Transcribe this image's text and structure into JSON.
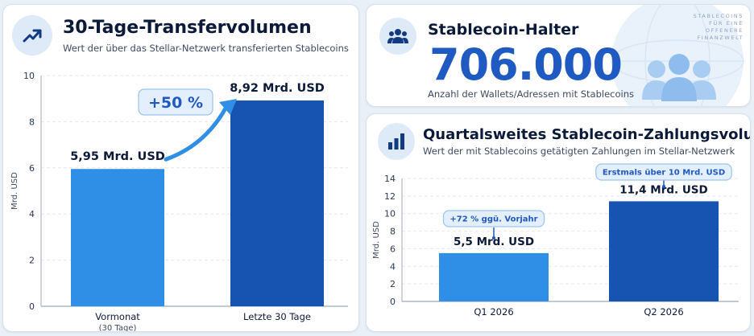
{
  "left_card": {
    "title": "30-Tage-Transfervolumen",
    "subtitle": "Wert der über das Stellar-Netzwerk transferierten Stablecoins",
    "icon": "trending-up-icon"
  },
  "holders_card": {
    "title": "Stablecoin-Halter",
    "value": "706.000",
    "caption": "Anzahl der Wallets/Adressen mit Stablecoins",
    "tagline": [
      "STABLECOINS",
      "FÜR EINE",
      "OFFENERE",
      "FINANZWELT"
    ],
    "icon": "users-icon",
    "illustration": "people-globe-icon"
  },
  "quarter_card": {
    "title": "Quartalsweites Stablecoin-Zahlungsvolumen",
    "subtitle": "Wert der mit Stablecoins getätigten Zahlungen im Stellar-Netzwerk",
    "icon": "bar-chart-icon"
  },
  "colors": {
    "bar_light": "#2f8ee6",
    "bar_dark": "#1753b0",
    "accent": "#1f59c2",
    "callout_bg": "#e3effc",
    "callout_border": "#9cc3ee"
  },
  "chart_data": [
    {
      "type": "bar",
      "categories": [
        "Vormonat",
        "Letzte 30 Tage"
      ],
      "category_sublabels": [
        "(30 Tage)",
        ""
      ],
      "values": [
        5.95,
        8.92
      ],
      "data_labels": [
        "5,95 Mrd. USD",
        "8,92 Mrd. USD"
      ],
      "ylabel": "Mrd. USD",
      "ylim": [
        0,
        10
      ],
      "yticks": [
        0,
        2,
        4,
        6,
        8,
        10
      ],
      "grid": true,
      "annotations": [
        {
          "text": "+50 %",
          "style": "arrow"
        }
      ]
    },
    {
      "type": "bar",
      "categories": [
        "Q1 2026",
        "Q2 2026"
      ],
      "values": [
        5.5,
        11.4
      ],
      "data_labels": [
        "5,5 Mrd. USD",
        "11,4 Mrd. USD"
      ],
      "ylabel": "Mrd. USD",
      "ylim": [
        0,
        14
      ],
      "yticks": [
        0,
        2,
        4,
        6,
        8,
        10,
        12,
        14
      ],
      "grid": true,
      "annotations": [
        {
          "text": "+72 % ggü. Vorjahr"
        },
        {
          "text": "Erstmals über 10 Mrd. USD"
        }
      ]
    }
  ]
}
